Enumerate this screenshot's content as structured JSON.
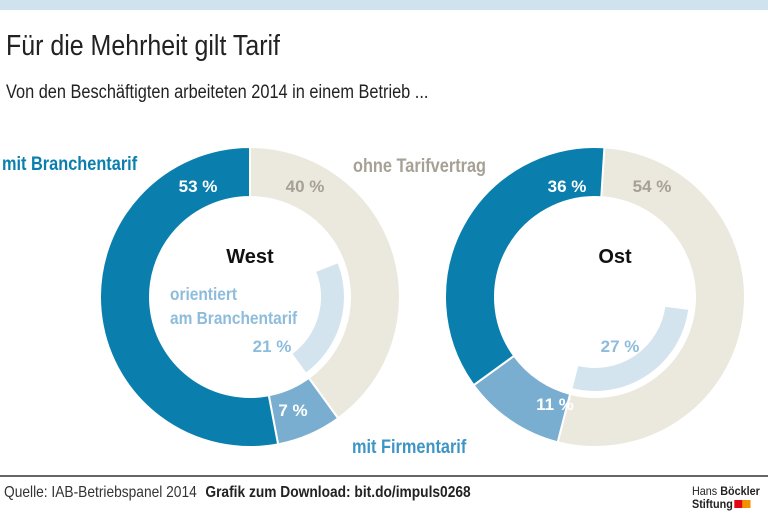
{
  "title": "Für die Mehrheit gilt Tarif",
  "subtitle": "Von den Beschäftigten arbeiteten 2014 in einem Betrieb ...",
  "footer": {
    "source": "Quelle: IAB-Betriebspanel 2014",
    "download": "Grafik zum Download: bit.do/impuls0268"
  },
  "logo": {
    "line1a": "Hans",
    "line1b": "Böckler",
    "line2": "Stiftung"
  },
  "chart_data": [
    {
      "type": "pie",
      "title": "West",
      "slices": [
        {
          "name": "ohne Tarifvertrag",
          "value": 40,
          "label": "40 %",
          "color": "#ebe8dd"
        },
        {
          "name": "mit Firmentarif",
          "value": 7,
          "label": "7 %",
          "color": "#7aaed0"
        },
        {
          "name": "mit Branchentarif",
          "value": 53,
          "label": "53 %",
          "color": "#0a7fae"
        }
      ],
      "inner": {
        "name": "orientiert am Branchentarif",
        "value": 21,
        "label": "21 %",
        "color": "#d3e4ef"
      }
    },
    {
      "type": "pie",
      "title": "Ost",
      "slices": [
        {
          "name": "ohne Tarifvertrag",
          "value": 54,
          "label": "54 %",
          "color": "#ebe8dd"
        },
        {
          "name": "mit Firmentarif",
          "value": 11,
          "label": "11 %",
          "color": "#7aaed0"
        },
        {
          "name": "mit Branchentarif",
          "value": 36,
          "label": "36 %",
          "color": "#0a7fae"
        }
      ],
      "inner": {
        "value": 27,
        "label": "27 %",
        "color": "#d3e4ef"
      }
    }
  ],
  "legend_labels": {
    "branchentarif": "mit Branchentarif",
    "ohne": "ohne Tarifvertrag",
    "orientiert1": "orientiert",
    "orientiert2": "am Branchentarif",
    "firmentarif": "mit Firmentarif"
  }
}
